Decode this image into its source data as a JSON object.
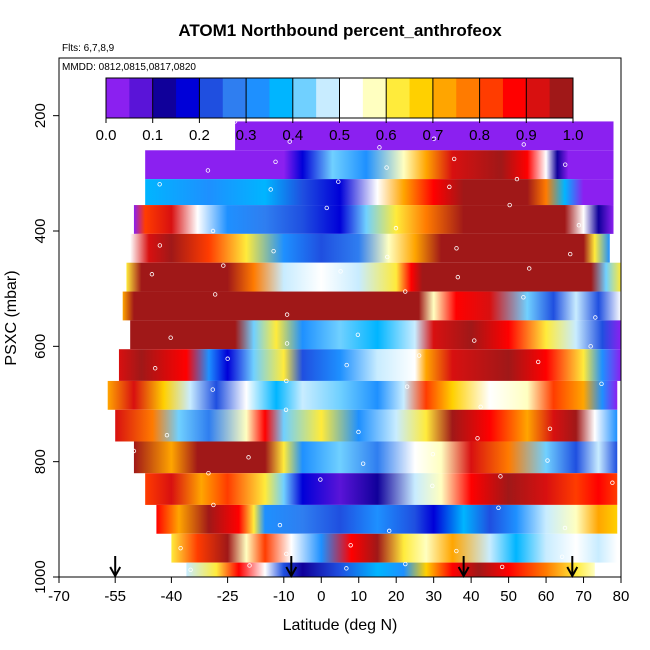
{
  "chart_data": {
    "type": "heatmap",
    "title": "ATOM1 Northbound percent_anthrofeox",
    "flights_note": "Flts: 6,7,8,9",
    "mmdd_note": "MMDD: 0812,0815,0817,0820",
    "xlabel": "Latitude (deg N)",
    "ylabel": "PSXC (mbar)",
    "xlim": [
      -70,
      80
    ],
    "ylim": [
      1000,
      100
    ],
    "x_ticks": [
      -70,
      -55,
      -40,
      -25,
      -10,
      0,
      10,
      20,
      30,
      40,
      50,
      60,
      70,
      80
    ],
    "y_ticks": [
      200,
      400,
      600,
      800,
      1000
    ],
    "colorbar": {
      "min": 0.0,
      "max": 1.0,
      "tick_labels": [
        "0.0",
        "0.1",
        "0.2",
        "0.3",
        "0.4",
        "0.5",
        "0.6",
        "0.7",
        "0.8",
        "0.9",
        "1.0"
      ],
      "colors": [
        "#8b20f0",
        "#5a14d8",
        "#10009a",
        "#0000d8",
        "#1f4fe0",
        "#2f7ef0",
        "#1e90ff",
        "#00b5ff",
        "#70d0ff",
        "#c8ecff",
        "#ffffff",
        "#ffffc0",
        "#ffeb3b",
        "#ffd000",
        "#ffa500",
        "#ff7b00",
        "#ff3c00",
        "#ff0000",
        "#d81010",
        "#a01818"
      ]
    },
    "flight_arrow_latitudes": [
      -55,
      -8,
      38,
      67
    ],
    "bands": [
      {
        "p_top": 210,
        "p_bot": 260,
        "lat_start": -23,
        "lat_end": 78,
        "stops": [
          [
            -23,
            0.0
          ],
          [
            78,
            0.0
          ]
        ]
      },
      {
        "p_top": 260,
        "p_bot": 310,
        "lat_start": -47,
        "lat_end": 78,
        "stops": [
          [
            -47,
            0.0
          ],
          [
            -10,
            0.0
          ],
          [
            -5,
            0.15
          ],
          [
            3,
            0.4
          ],
          [
            12,
            0.3
          ],
          [
            22,
            0.55
          ],
          [
            28,
            0.7
          ],
          [
            35,
            0.9
          ],
          [
            48,
            0.95
          ],
          [
            55,
            0.85
          ],
          [
            60,
            0.5
          ],
          [
            63,
            0.1
          ],
          [
            66,
            0.0
          ],
          [
            78,
            0.0
          ]
        ]
      },
      {
        "p_top": 310,
        "p_bot": 355,
        "lat_start": -47,
        "lat_end": 78,
        "stops": [
          [
            -47,
            0.35
          ],
          [
            -30,
            0.3
          ],
          [
            -15,
            0.35
          ],
          [
            -5,
            0.2
          ],
          [
            5,
            0.15
          ],
          [
            15,
            0.5
          ],
          [
            22,
            0.7
          ],
          [
            30,
            0.85
          ],
          [
            38,
            1.0
          ],
          [
            55,
            1.0
          ],
          [
            60,
            0.75
          ],
          [
            65,
            0.35
          ],
          [
            70,
            0.0
          ],
          [
            78,
            0.0
          ]
        ]
      },
      {
        "p_top": 355,
        "p_bot": 405,
        "lat_start": -50,
        "lat_end": 78,
        "stops": [
          [
            -50,
            0.0
          ],
          [
            -47,
            0.8
          ],
          [
            -40,
            0.9
          ],
          [
            -33,
            0.5
          ],
          [
            -25,
            0.3
          ],
          [
            -15,
            0.25
          ],
          [
            -5,
            0.2
          ],
          [
            5,
            0.15
          ],
          [
            12,
            0.4
          ],
          [
            20,
            0.6
          ],
          [
            28,
            0.75
          ],
          [
            38,
            1.0
          ],
          [
            65,
            1.0
          ],
          [
            70,
            0.5
          ],
          [
            74,
            0.1
          ],
          [
            78,
            0.0
          ]
        ]
      },
      {
        "p_top": 405,
        "p_bot": 455,
        "lat_start": -51,
        "lat_end": 77,
        "stops": [
          [
            -51,
            0.5
          ],
          [
            -46,
            0.9
          ],
          [
            -40,
            1.0
          ],
          [
            -30,
            0.8
          ],
          [
            -20,
            0.6
          ],
          [
            -10,
            0.3
          ],
          [
            0,
            0.2
          ],
          [
            10,
            0.25
          ],
          [
            18,
            0.55
          ],
          [
            25,
            0.7
          ],
          [
            32,
            1.0
          ],
          [
            70,
            1.0
          ],
          [
            73,
            0.6
          ],
          [
            77,
            0.3
          ]
        ]
      },
      {
        "p_top": 455,
        "p_bot": 505,
        "lat_start": -52,
        "lat_end": 80,
        "stops": [
          [
            -52,
            0.6
          ],
          [
            -48,
            1.0
          ],
          [
            -25,
            1.0
          ],
          [
            -18,
            0.75
          ],
          [
            -10,
            0.45
          ],
          [
            0,
            0.5
          ],
          [
            10,
            0.45
          ],
          [
            20,
            0.6
          ],
          [
            24,
            0.85
          ],
          [
            27,
            1.0
          ],
          [
            72,
            1.0
          ],
          [
            76,
            0.4
          ],
          [
            80,
            0.6
          ]
        ]
      },
      {
        "p_top": 505,
        "p_bot": 555,
        "lat_start": -53,
        "lat_end": 80,
        "stops": [
          [
            -53,
            0.7
          ],
          [
            -50,
            1.0
          ],
          [
            23,
            1.0
          ],
          [
            26,
            0.95
          ],
          [
            30,
            0.55
          ],
          [
            36,
            0.85
          ],
          [
            45,
            0.9
          ],
          [
            55,
            0.4
          ],
          [
            62,
            0.2
          ],
          [
            68,
            0.45
          ],
          [
            74,
            0.2
          ],
          [
            80,
            0.5
          ]
        ]
      },
      {
        "p_top": 555,
        "p_bot": 605,
        "lat_start": -51,
        "lat_end": 80,
        "stops": [
          [
            -51,
            1.0
          ],
          [
            -23,
            1.0
          ],
          [
            -18,
            0.4
          ],
          [
            -12,
            0.6
          ],
          [
            -5,
            0.3
          ],
          [
            5,
            0.4
          ],
          [
            15,
            0.35
          ],
          [
            25,
            0.45
          ],
          [
            30,
            0.9
          ],
          [
            40,
            0.95
          ],
          [
            50,
            0.85
          ],
          [
            60,
            0.6
          ],
          [
            68,
            0.45
          ],
          [
            75,
            0.2
          ],
          [
            80,
            0.0
          ]
        ]
      },
      {
        "p_top": 605,
        "p_bot": 660,
        "lat_start": -54,
        "lat_end": 80,
        "stops": [
          [
            -54,
            0.9
          ],
          [
            -48,
            1.0
          ],
          [
            -36,
            0.85
          ],
          [
            -30,
            0.3
          ],
          [
            -25,
            0.15
          ],
          [
            -18,
            0.4
          ],
          [
            -10,
            0.6
          ],
          [
            -5,
            0.2
          ],
          [
            5,
            0.3
          ],
          [
            15,
            0.45
          ],
          [
            25,
            0.5
          ],
          [
            28,
            0.7
          ],
          [
            35,
            0.9
          ],
          [
            50,
            0.95
          ],
          [
            60,
            0.85
          ],
          [
            70,
            0.6
          ],
          [
            75,
            0.3
          ],
          [
            80,
            0.0
          ]
        ]
      },
      {
        "p_top": 660,
        "p_bot": 710,
        "lat_start": -57,
        "lat_end": 79,
        "stops": [
          [
            -57,
            0.7
          ],
          [
            -50,
            0.9
          ],
          [
            -42,
            0.65
          ],
          [
            -35,
            0.45
          ],
          [
            -28,
            0.2
          ],
          [
            -20,
            0.5
          ],
          [
            -12,
            0.35
          ],
          [
            -5,
            0.45
          ],
          [
            5,
            0.4
          ],
          [
            15,
            0.3
          ],
          [
            22,
            0.45
          ],
          [
            28,
            0.8
          ],
          [
            35,
            0.65
          ],
          [
            45,
            0.5
          ],
          [
            55,
            0.55
          ],
          [
            62,
            0.8
          ],
          [
            70,
            0.7
          ],
          [
            75,
            0.3
          ],
          [
            79,
            0.0
          ]
        ]
      },
      {
        "p_top": 710,
        "p_bot": 765,
        "lat_start": -55,
        "lat_end": 79,
        "stops": [
          [
            -55,
            0.9
          ],
          [
            -45,
            0.75
          ],
          [
            -38,
            0.4
          ],
          [
            -30,
            0.25
          ],
          [
            -20,
            0.55
          ],
          [
            -15,
            0.85
          ],
          [
            -10,
            0.4
          ],
          [
            0,
            0.6
          ],
          [
            10,
            0.3
          ],
          [
            20,
            0.45
          ],
          [
            28,
            0.6
          ],
          [
            35,
            0.95
          ],
          [
            45,
            0.85
          ],
          [
            55,
            0.7
          ],
          [
            62,
            0.9
          ],
          [
            68,
            1.0
          ],
          [
            73,
            0.5
          ],
          [
            79,
            0.3
          ]
        ]
      },
      {
        "p_top": 765,
        "p_bot": 820,
        "lat_start": -50,
        "lat_end": 79,
        "stops": [
          [
            -50,
            0.95
          ],
          [
            -40,
            0.7
          ],
          [
            -33,
            0.95
          ],
          [
            -15,
            0.95
          ],
          [
            -10,
            0.6
          ],
          [
            -5,
            0.3
          ],
          [
            5,
            0.4
          ],
          [
            15,
            0.25
          ],
          [
            25,
            0.5
          ],
          [
            32,
            0.55
          ],
          [
            40,
            0.9
          ],
          [
            50,
            0.75
          ],
          [
            60,
            0.4
          ],
          [
            68,
            0.2
          ],
          [
            74,
            0.45
          ],
          [
            79,
            0.2
          ]
        ]
      },
      {
        "p_top": 820,
        "p_bot": 875,
        "lat_start": -47,
        "lat_end": 79,
        "stops": [
          [
            -47,
            0.8
          ],
          [
            -40,
            0.9
          ],
          [
            -32,
            0.7
          ],
          [
            -25,
            0.8
          ],
          [
            -15,
            0.6
          ],
          [
            -10,
            0.4
          ],
          [
            -5,
            0.15
          ],
          [
            5,
            0.05
          ],
          [
            15,
            0.1
          ],
          [
            25,
            0.45
          ],
          [
            32,
            0.55
          ],
          [
            40,
            0.85
          ],
          [
            50,
            0.95
          ],
          [
            60,
            0.9
          ],
          [
            68,
            0.8
          ],
          [
            74,
            0.85
          ],
          [
            79,
            0.8
          ]
        ]
      },
      {
        "p_top": 875,
        "p_bot": 925,
        "lat_start": -44,
        "lat_end": 79,
        "stops": [
          [
            -44,
            0.85
          ],
          [
            -38,
            0.7
          ],
          [
            -30,
            0.95
          ],
          [
            -22,
            0.85
          ],
          [
            -18,
            0.6
          ],
          [
            -15,
            0.3
          ],
          [
            -5,
            0.25
          ],
          [
            5,
            0.2
          ],
          [
            15,
            0.3
          ],
          [
            25,
            0.2
          ],
          [
            30,
            0.15
          ],
          [
            38,
            0.35
          ],
          [
            45,
            0.2
          ],
          [
            52,
            0.3
          ],
          [
            60,
            0.45
          ],
          [
            68,
            0.55
          ],
          [
            74,
            0.7
          ],
          [
            79,
            0.65
          ]
        ]
      },
      {
        "p_top": 925,
        "p_bot": 975,
        "lat_start": -40,
        "lat_end": 79,
        "stops": [
          [
            -40,
            0.6
          ],
          [
            -33,
            0.8
          ],
          [
            -25,
            0.95
          ],
          [
            -20,
            0.55
          ],
          [
            -15,
            0.8
          ],
          [
            -8,
            0.5
          ],
          [
            0,
            0.3
          ],
          [
            8,
            0.85
          ],
          [
            15,
            0.95
          ],
          [
            22,
            0.6
          ],
          [
            28,
            0.55
          ],
          [
            35,
            0.7
          ],
          [
            45,
            0.45
          ],
          [
            52,
            0.35
          ],
          [
            60,
            0.45
          ],
          [
            68,
            0.5
          ],
          [
            74,
            0.45
          ],
          [
            79,
            0.5
          ]
        ]
      },
      {
        "p_top": 975,
        "p_bot": 1000,
        "lat_start": -36,
        "lat_end": 73,
        "stops": [
          [
            -36,
            0.45
          ],
          [
            -28,
            0.6
          ],
          [
            -22,
            0.85
          ],
          [
            -15,
            0.5
          ],
          [
            -10,
            0.2
          ],
          [
            -5,
            0.1
          ],
          [
            5,
            0.2
          ],
          [
            15,
            0.35
          ],
          [
            22,
            0.3
          ],
          [
            28,
            0.65
          ],
          [
            35,
            0.85
          ],
          [
            42,
            0.95
          ],
          [
            50,
            0.85
          ],
          [
            60,
            0.75
          ],
          [
            68,
            0.6
          ],
          [
            73,
            0.55
          ]
        ]
      }
    ]
  }
}
